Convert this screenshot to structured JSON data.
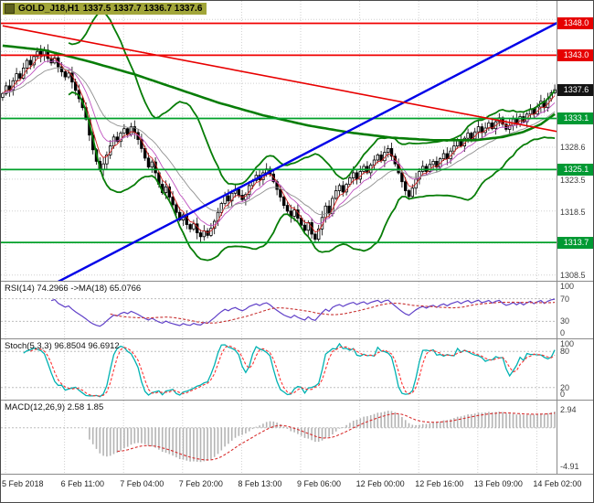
{
  "window": {
    "symbol": "GOLD_J18,H1",
    "ohlc": "1337.5 1337.7 1336.7 1337.6"
  },
  "colors": {
    "candle_up": "#ffffff",
    "candle_down": "#000000",
    "candle_outline": "#000000",
    "bollinger": "#077d07",
    "ma_long": "#077d07",
    "ema_fast": "#d02020",
    "ema_mid": "#c050c0",
    "ema_slow": "#909090",
    "support": "#00a02a",
    "resistance": "#f00000",
    "trend_up": "#0000e8",
    "trend_down": "#e80000",
    "rsi": "#6040c8",
    "rsi_ma": "#c83232",
    "stoch_main": "#00b2b2",
    "stoch_signal": "#ff3232",
    "macd_hist": "#b4b4b4",
    "macd_signal": "#d83030",
    "badge_resistance": "#e60000",
    "badge_support": "#009933",
    "badge_price": "#141414",
    "grid": "#cfcfcf"
  },
  "time_axis": [
    "5 Feb 2018",
    "6 Feb 11:00",
    "7 Feb 04:00",
    "7 Feb 20:00",
    "8 Feb 13:00",
    "9 Feb 06:00",
    "12 Feb 00:00",
    "12 Feb 16:00",
    "13 Feb 09:00",
    "14 Feb 02:00"
  ],
  "price_axis": {
    "labels": [
      {
        "text": "1328.6",
        "price": 1328.6
      },
      {
        "text": "1323.5",
        "price": 1323.5
      },
      {
        "text": "1318.5",
        "price": 1318.5
      },
      {
        "text": "1308.5",
        "price": 1308.5
      }
    ],
    "badges": [
      {
        "text": "1348.0",
        "price": 1348.0,
        "type": "resistance"
      },
      {
        "text": "1343.0",
        "price": 1343.0,
        "type": "resistance"
      },
      {
        "text": "1337.6",
        "price": 1337.6,
        "type": "price"
      },
      {
        "text": "1333.1",
        "price": 1333.1,
        "type": "support"
      },
      {
        "text": "1325.1",
        "price": 1325.1,
        "type": "support"
      },
      {
        "text": "1313.7",
        "price": 1313.7,
        "type": "support"
      }
    ]
  },
  "panels": {
    "rsi": {
      "label": "RSI(14) 74.2966  ->MA(18) 65.0766",
      "scale": [
        "100",
        "70",
        "30",
        "0"
      ],
      "scale_values": [
        100,
        70,
        30,
        0
      ],
      "levels": [
        70,
        30
      ]
    },
    "stoch": {
      "label": "Stoch(5,3,3) 96.8504 96.6912",
      "scale": [
        "100",
        "80",
        "20",
        "0"
      ],
      "scale_values": [
        100,
        80,
        20,
        0
      ],
      "levels": [
        80,
        20
      ]
    },
    "macd": {
      "label": "MACD(12,26,9) 2.58 1.85",
      "scale_top": "2.94",
      "scale_bottom": "-4.91"
    }
  },
  "chart_data": {
    "type": "candlestick",
    "symbol": "GOLD_J18",
    "timeframe": "H1",
    "current": {
      "open": 1337.5,
      "high": 1337.7,
      "low": 1336.7,
      "close": 1337.6
    },
    "y_range": [
      1307.7,
      1351.5
    ],
    "open_first": 1336.4,
    "closes": [
      1337.0,
      1338.2,
      1337.5,
      1339.0,
      1340.1,
      1339.4,
      1341.0,
      1342.2,
      1341.5,
      1342.8,
      1343.6,
      1342.9,
      1343.8,
      1342.5,
      1341.8,
      1342.6,
      1341.2,
      1340.4,
      1339.6,
      1340.2,
      1338.8,
      1337.5,
      1336.2,
      1334.8,
      1333.0,
      1330.5,
      1328.2,
      1326.4,
      1325.1,
      1326.0,
      1327.4,
      1328.8,
      1330.2,
      1329.5,
      1330.8,
      1331.5,
      1330.6,
      1331.8,
      1330.9,
      1329.8,
      1328.4,
      1326.9,
      1325.5,
      1326.3,
      1324.6,
      1322.8,
      1321.5,
      1322.4,
      1320.8,
      1319.6,
      1318.4,
      1317.2,
      1318.0,
      1316.5,
      1315.8,
      1316.6,
      1315.2,
      1314.6,
      1315.5,
      1314.8,
      1315.9,
      1317.0,
      1318.4,
      1319.8,
      1321.0,
      1320.2,
      1321.4,
      1322.0,
      1321.1,
      1320.4,
      1321.2,
      1322.6,
      1323.4,
      1324.2,
      1323.5,
      1324.6,
      1325.2,
      1324.4,
      1323.2,
      1322.0,
      1320.8,
      1319.5,
      1318.6,
      1317.8,
      1318.8,
      1317.5,
      1316.4,
      1315.6,
      1316.8,
      1315.0,
      1314.2,
      1315.8,
      1317.6,
      1319.4,
      1318.2,
      1320.6,
      1321.8,
      1322.6,
      1321.6,
      1322.8,
      1323.8,
      1324.6,
      1323.6,
      1324.8,
      1325.6,
      1324.6,
      1325.8,
      1326.6,
      1327.4,
      1326.5,
      1327.8,
      1328.4,
      1327.2,
      1326.0,
      1324.6,
      1323.2,
      1321.8,
      1320.9,
      1322.2,
      1323.6,
      1324.8,
      1325.6,
      1324.8,
      1325.9,
      1326.4,
      1325.5,
      1326.8,
      1327.6,
      1326.8,
      1328.0,
      1328.8,
      1329.6,
      1328.8,
      1330.0,
      1330.8,
      1329.9,
      1331.0,
      1331.8,
      1330.9,
      1331.6,
      1332.4,
      1331.5,
      1332.6,
      1333.2,
      1332.2,
      1331.4,
      1332.0,
      1333.0,
      1332.2,
      1333.4,
      1332.6,
      1333.8,
      1334.6,
      1333.8,
      1334.9,
      1335.8,
      1334.8,
      1336.2,
      1337.1,
      1337.6
    ],
    "grid_prices": [
      1348.6,
      1343.6,
      1338.6,
      1333.6,
      1328.6,
      1323.6,
      1318.6,
      1313.6,
      1308.6
    ],
    "levels": {
      "support": [
        1333.1,
        1325.1,
        1313.7
      ],
      "resistance": [
        1348.0,
        1343.0
      ]
    },
    "trendlines": [
      {
        "name": "ascending",
        "color": "trend_up",
        "width": 2.4,
        "from": [
          14,
          1307.0
        ],
        "to": [
          163,
          1349.0
        ]
      },
      {
        "name": "descending",
        "color": "trend_down",
        "width": 1.6,
        "from": [
          0,
          1347.6
        ],
        "to": [
          165,
          1330.5
        ]
      }
    ],
    "ma_long_points": [
      [
        0,
        1344.5
      ],
      [
        12,
        1343.8
      ],
      [
        25,
        1342.0
      ],
      [
        38,
        1340.0
      ],
      [
        50,
        1337.8
      ],
      [
        62,
        1335.6
      ],
      [
        75,
        1333.6
      ],
      [
        88,
        1332.0
      ],
      [
        100,
        1330.9
      ],
      [
        112,
        1330.1
      ],
      [
        124,
        1329.7
      ],
      [
        136,
        1329.7
      ],
      [
        144,
        1330.2
      ],
      [
        150,
        1331.0
      ],
      [
        155,
        1332.2
      ],
      [
        159,
        1333.8
      ]
    ],
    "macd_range": [
      -5.6,
      3.3
    ],
    "indicators": {
      "rsi": {
        "period": 14,
        "value": 74.2966,
        "ma_period": 18,
        "ma_value": 65.0766
      },
      "stochastic": {
        "k": 5,
        "d": 3,
        "slowing": 3,
        "main": 96.8504,
        "signal": 96.6912
      },
      "macd": {
        "fast": 12,
        "slow": 26,
        "signal": 9,
        "value": 2.58,
        "signal_value": 1.85
      },
      "bollinger": {
        "period": 20,
        "deviation": 2.1
      }
    }
  }
}
